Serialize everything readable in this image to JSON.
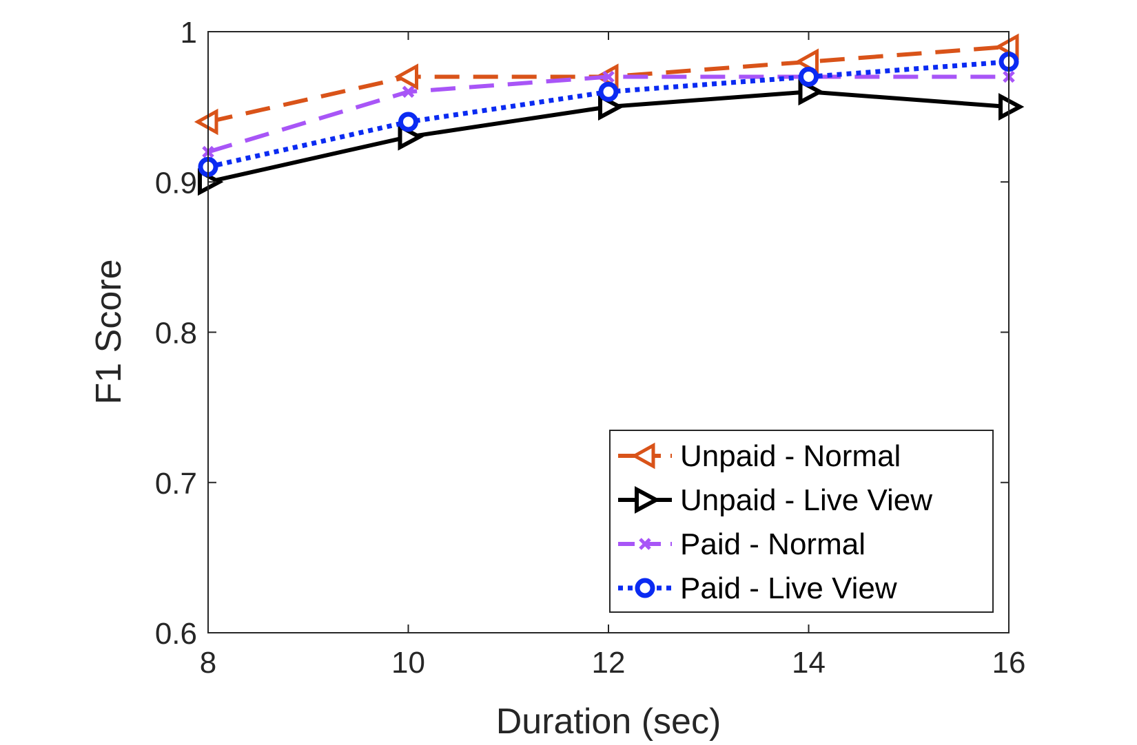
{
  "chart_data": {
    "type": "line",
    "title": "",
    "xlabel": "Duration (sec)",
    "ylabel": "F1 Score",
    "x": [
      8,
      10,
      12,
      14,
      16
    ],
    "xlim": [
      8,
      16
    ],
    "ylim": [
      0.6,
      1
    ],
    "xticks": [
      "8",
      "10",
      "12",
      "14",
      "16"
    ],
    "yticks": [
      "0.6",
      "0.7",
      "0.8",
      "0.9",
      "1"
    ],
    "grid": false,
    "legend_position": "bottom-right",
    "series": [
      {
        "name": "Unpaid - Normal",
        "values": [
          0.94,
          0.97,
          0.97,
          0.98,
          0.99
        ],
        "color": "#D95319",
        "line": "dashed",
        "marker": "triangle-left"
      },
      {
        "name": "Unpaid - Live View",
        "values": [
          0.9,
          0.93,
          0.95,
          0.96,
          0.95
        ],
        "color": "#000000",
        "line": "solid",
        "marker": "triangle-right"
      },
      {
        "name": "Paid - Normal",
        "values": [
          0.92,
          0.96,
          0.97,
          0.97,
          0.97
        ],
        "color": "#A855F7",
        "line": "dashed",
        "marker": "x"
      },
      {
        "name": "Paid - Live View",
        "values": [
          0.91,
          0.94,
          0.96,
          0.97,
          0.98
        ],
        "color": "#0B2BF2",
        "line": "dotted",
        "marker": "circle"
      }
    ]
  }
}
